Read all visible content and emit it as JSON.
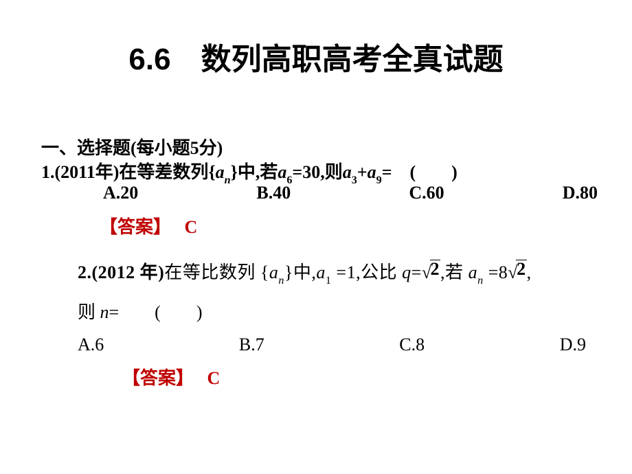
{
  "colors": {
    "text": "#000000",
    "answer": "#c00000",
    "background": "#ffffff"
  },
  "typography": {
    "title_fontsize": 44,
    "body_fontsize": 26,
    "title_font": "SimHei",
    "body_font": "SimSun"
  },
  "title": "6.6　数列高职高考全真试题",
  "section_heading": "一、选择题(每小题5分)",
  "q1": {
    "number": "1.",
    "year": "(2011年)",
    "stem_prefix": "在等差数列{",
    "seq_var": "a",
    "seq_sub": "n",
    "stem_mid1": "}中,若",
    "a6_var": "a",
    "a6_sub": "6",
    "a6_eq": "=30,则",
    "a3_var": "a",
    "a3_sub": "3",
    "plus": "+",
    "a9_var": "a",
    "a9_sub": "9",
    "tail": "=　(　　)",
    "choices": {
      "A": "A.20",
      "B": "B.40",
      "C": "C.60",
      "D": "D.80"
    },
    "answer_label": "【答案】",
    "answer_value": "C"
  },
  "q2": {
    "number": "2.",
    "year": "(2012 年)",
    "stem_prefix": "在等比数列 {",
    "seq_var": "a",
    "seq_sub": "n",
    "stem_mid1": "}中,",
    "a1_var": "a",
    "a1_sub": "1",
    "a1_eq": " =1,公比 ",
    "q_var": "q",
    "q_eq": "=",
    "root2": "2",
    "mid2": ",若 ",
    "an_var": "a",
    "an_sub": "n",
    "an_eq": " =8",
    "comma": ",",
    "line2_prefix": "则 ",
    "n_var": "n",
    "line2_tail": "=　　(　　)",
    "choices": {
      "A": "A.6",
      "B": "B.7",
      "C": "C.8",
      "D": "D.9"
    },
    "answer_label": "【答案】",
    "answer_value": "C"
  }
}
